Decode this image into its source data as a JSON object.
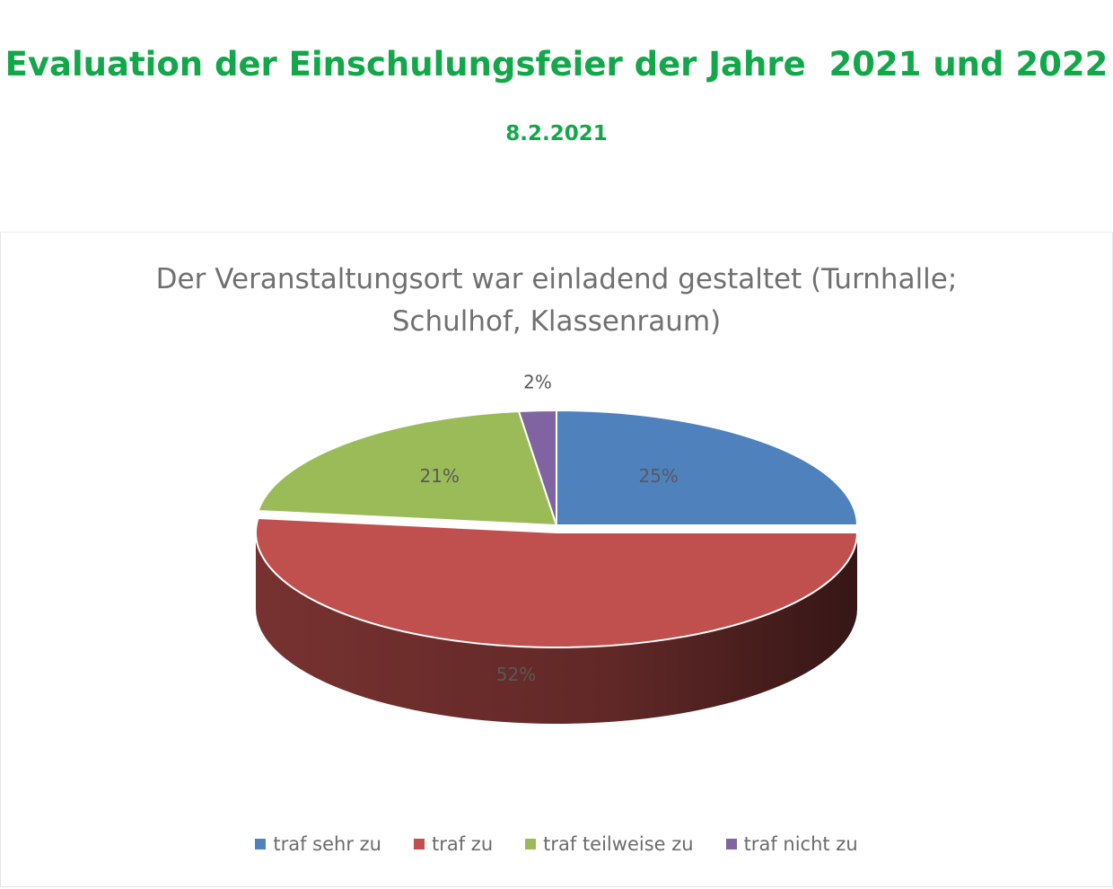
{
  "header": {
    "title": "Evaluation der Einschulungsfeier der Jahre  2021 und 2022",
    "date": "8.2.2021"
  },
  "chart_data": {
    "type": "pie",
    "title_line1": "Der Veranstaltungsort war einladend gestaltet (Turnhalle;",
    "title_line2": "Schulhof, Klassenraum)",
    "categories": [
      "traf sehr zu",
      "traf zu",
      "traf teilweise zu",
      "traf nicht zu"
    ],
    "values": [
      25,
      52,
      21,
      2
    ],
    "labels": [
      "25%",
      "52%",
      "21%",
      "2%"
    ],
    "colors": [
      "#4f81bd",
      "#c0504d",
      "#9bbb59",
      "#8064a2"
    ],
    "style": "3d",
    "legend_position": "bottom"
  }
}
